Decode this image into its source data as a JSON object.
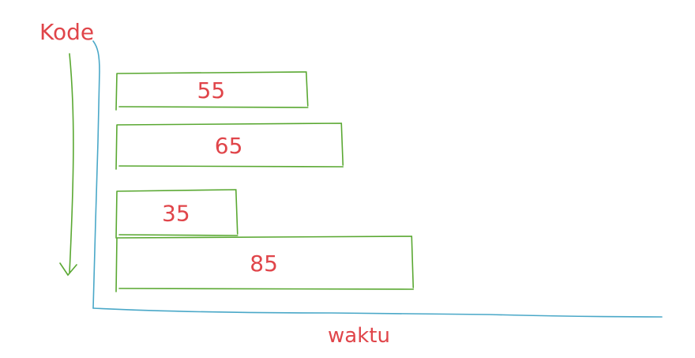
{
  "chart_data": {
    "type": "bar",
    "orientation": "horizontal",
    "ylabel": "Kode",
    "xlabel": "waktu",
    "categories": [
      "",
      "",
      "",
      ""
    ],
    "series": [
      {
        "values": [
          55,
          65,
          35,
          85
        ],
        "labels": [
          "55",
          "65",
          "35",
          "85"
        ]
      }
    ],
    "xlim": [
      0,
      100
    ],
    "grid": false,
    "legend": "none",
    "colors": {
      "axis": "#4aa8c8",
      "bar_outline": "#5aa832",
      "text": "#e0454a",
      "arrow": "#5aa832"
    }
  }
}
